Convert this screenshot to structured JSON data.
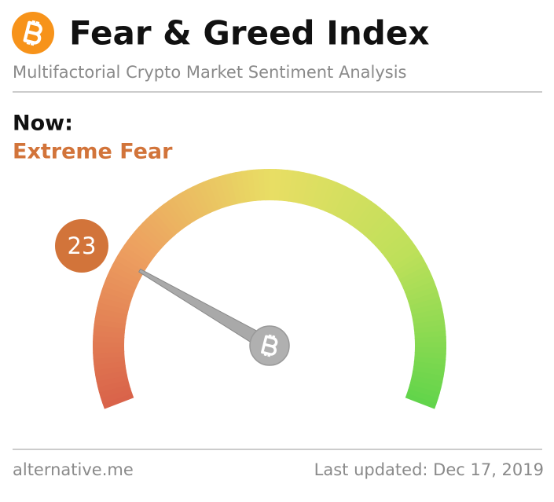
{
  "chart_data": {
    "type": "gauge",
    "title": "Fear & Greed Index",
    "subtitle": "Multifactorial Crypto Market Sentiment Analysis",
    "now_label": "Now:",
    "classification": "Extreme Fear",
    "value": 23,
    "ylim": [
      0,
      100
    ],
    "color": "#d2743a",
    "source": "alternative.me",
    "updated": "Last updated: Dec 17, 2019"
  }
}
